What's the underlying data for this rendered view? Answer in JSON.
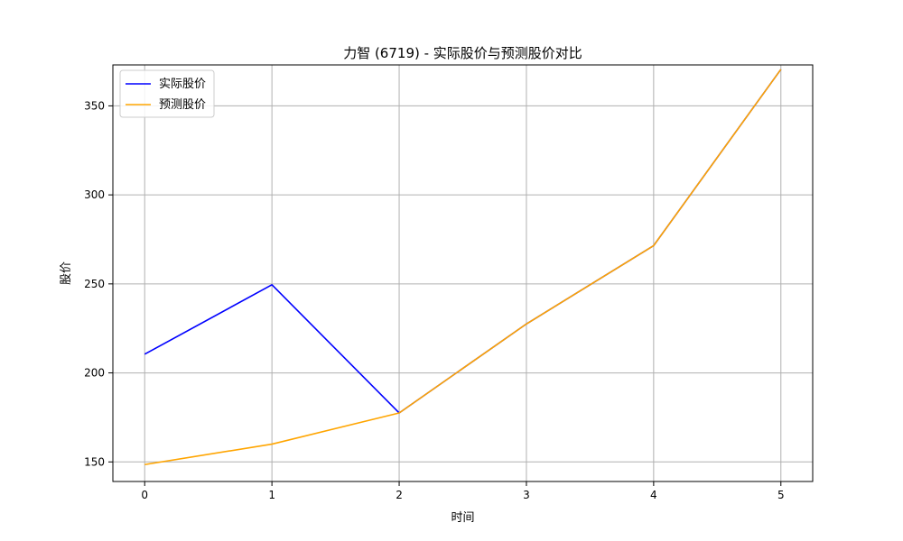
{
  "chart_data": {
    "type": "line",
    "title": "力智 (6719) - 实际股价与预测股价对比",
    "xlabel": "时间",
    "ylabel": "股价",
    "x": [
      0,
      1,
      2,
      3,
      4,
      5
    ],
    "xlim": [
      -0.25,
      5.25
    ],
    "ylim": [
      139,
      373
    ],
    "xticks": [
      0,
      1,
      2,
      3,
      4,
      5
    ],
    "yticks": [
      150,
      200,
      250,
      300,
      350
    ],
    "grid": true,
    "legend_position": "top-left",
    "series": [
      {
        "name": "实际股价",
        "color": "#0000ff",
        "values": [
          210.5,
          249.5,
          177.5,
          227.5,
          271.5,
          370.5
        ]
      },
      {
        "name": "预测股价",
        "color": "#ffa500",
        "values": [
          148.5,
          160,
          177.5,
          227.5,
          271.5,
          370.5
        ]
      }
    ]
  }
}
